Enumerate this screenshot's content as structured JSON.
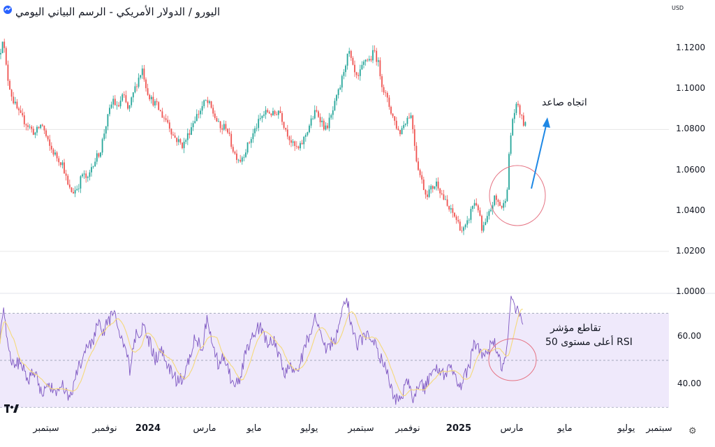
{
  "header": {
    "title": "اليورو / الدولار الأمريكي - الرسم البياني اليومي",
    "currency": "USD"
  },
  "annotations": {
    "uptrend": "اتجاه صاعد",
    "rsi_line1": "تقاطع مؤشر",
    "rsi_line2": "RSI أعلى مستوى 50"
  },
  "colors": {
    "up": "#26a69a",
    "down": "#ef5350",
    "rsi": "#7e57c2",
    "rsi_ma": "#f5d97a",
    "rsi_band": "#efe9fb",
    "arrow": "#1e88e5",
    "circle": "#e57383"
  },
  "icons": {
    "logo": "tradingview-logo",
    "settings": "settings-gear-icon"
  },
  "chart_data": [
    {
      "type": "candlestick",
      "series": [
        {
          "name": "EUR/USD"
        }
      ],
      "y_ticks": [
        "1.1200",
        "1.1000",
        "1.0800",
        "1.0600",
        "1.0400",
        "1.0200",
        "1.0000"
      ],
      "ylim": [
        1.0,
        1.13
      ],
      "x_ticks": [
        "سبتمبر",
        "نوفمبر",
        "2024",
        "مارس",
        "مايو",
        "يوليو",
        "سبتمبر",
        "نوفمبر",
        "2025",
        "مارس",
        "مايو",
        "يوليو",
        "سبتمبر"
      ],
      "approx_close_path": [
        [
          0,
          1.117
        ],
        [
          4,
          1.126
        ],
        [
          10,
          1.107
        ],
        [
          18,
          1.095
        ],
        [
          28,
          1.087
        ],
        [
          40,
          1.082
        ],
        [
          50,
          1.078
        ],
        [
          60,
          1.083
        ],
        [
          70,
          1.072
        ],
        [
          80,
          1.067
        ],
        [
          90,
          1.063
        ],
        [
          98,
          1.051
        ],
        [
          104,
          1.049
        ],
        [
          112,
          1.052
        ],
        [
          118,
          1.058
        ],
        [
          126,
          1.055
        ],
        [
          132,
          1.063
        ],
        [
          138,
          1.066
        ],
        [
          144,
          1.07
        ],
        [
          150,
          1.08
        ],
        [
          156,
          1.088
        ],
        [
          162,
          1.095
        ],
        [
          168,
          1.09
        ],
        [
          176,
          1.097
        ],
        [
          184,
          1.089
        ],
        [
          192,
          1.099
        ],
        [
          198,
          1.105
        ],
        [
          204,
          1.11
        ],
        [
          210,
          1.1
        ],
        [
          216,
          1.095
        ],
        [
          224,
          1.092
        ],
        [
          232,
          1.087
        ],
        [
          240,
          1.084
        ],
        [
          248,
          1.077
        ],
        [
          256,
          1.074
        ],
        [
          262,
          1.072
        ],
        [
          270,
          1.078
        ],
        [
          278,
          1.085
        ],
        [
          286,
          1.089
        ],
        [
          294,
          1.094
        ],
        [
          300,
          1.092
        ],
        [
          308,
          1.086
        ],
        [
          316,
          1.08
        ],
        [
          324,
          1.082
        ],
        [
          330,
          1.074
        ],
        [
          336,
          1.068
        ],
        [
          344,
          1.065
        ],
        [
          352,
          1.07
        ],
        [
          360,
          1.076
        ],
        [
          368,
          1.082
        ],
        [
          376,
          1.087
        ],
        [
          384,
          1.089
        ],
        [
          392,
          1.087
        ],
        [
          400,
          1.09
        ],
        [
          406,
          1.083
        ],
        [
          412,
          1.078
        ],
        [
          420,
          1.072
        ],
        [
          428,
          1.07
        ],
        [
          436,
          1.076
        ],
        [
          444,
          1.083
        ],
        [
          452,
          1.089
        ],
        [
          458,
          1.086
        ],
        [
          466,
          1.08
        ],
        [
          474,
          1.086
        ],
        [
          480,
          1.093
        ],
        [
          488,
          1.102
        ],
        [
          494,
          1.112
        ],
        [
          500,
          1.118
        ],
        [
          506,
          1.109
        ],
        [
          512,
          1.104
        ],
        [
          518,
          1.11
        ],
        [
          524,
          1.115
        ],
        [
          530,
          1.114
        ],
        [
          536,
          1.119
        ],
        [
          542,
          1.112
        ],
        [
          548,
          1.101
        ],
        [
          556,
          1.093
        ],
        [
          564,
          1.085
        ],
        [
          572,
          1.078
        ],
        [
          580,
          1.084
        ],
        [
          588,
          1.088
        ],
        [
          592,
          1.079
        ],
        [
          596,
          1.066
        ],
        [
          602,
          1.057
        ],
        [
          610,
          1.048
        ],
        [
          618,
          1.051
        ],
        [
          626,
          1.054
        ],
        [
          634,
          1.047
        ],
        [
          642,
          1.041
        ],
        [
          650,
          1.038
        ],
        [
          656,
          1.034
        ],
        [
          662,
          1.03
        ],
        [
          668,
          1.032
        ],
        [
          672,
          1.037
        ],
        [
          678,
          1.044
        ],
        [
          684,
          1.043
        ],
        [
          690,
          1.03
        ],
        [
          696,
          1.034
        ],
        [
          702,
          1.04
        ],
        [
          708,
          1.046
        ],
        [
          714,
          1.044
        ],
        [
          720,
          1.041
        ],
        [
          726,
          1.05
        ],
        [
          730,
          1.072
        ],
        [
          734,
          1.085
        ],
        [
          738,
          1.09
        ],
        [
          742,
          1.092
        ],
        [
          746,
          1.086
        ],
        [
          750,
          1.083
        ],
        [
          754,
          1.081
        ]
      ]
    },
    {
      "type": "line",
      "series": [
        {
          "name": "RSI"
        },
        {
          "name": "RSI MA"
        }
      ],
      "y_ticks": [
        "60.00",
        "40.00"
      ],
      "ylim": [
        28,
        77
      ],
      "bands": [
        30,
        50,
        70
      ],
      "approx_path": [
        [
          0,
          60
        ],
        [
          6,
          72
        ],
        [
          12,
          55
        ],
        [
          20,
          47
        ],
        [
          30,
          50
        ],
        [
          40,
          42
        ],
        [
          50,
          45
        ],
        [
          60,
          36
        ],
        [
          70,
          40
        ],
        [
          80,
          34
        ],
        [
          90,
          40
        ],
        [
          98,
          33
        ],
        [
          106,
          40
        ],
        [
          114,
          48
        ],
        [
          120,
          53
        ],
        [
          130,
          56
        ],
        [
          140,
          65
        ],
        [
          148,
          62
        ],
        [
          156,
          67
        ],
        [
          164,
          70
        ],
        [
          172,
          60
        ],
        [
          180,
          55
        ],
        [
          186,
          45
        ],
        [
          194,
          60
        ],
        [
          200,
          62
        ],
        [
          206,
          65
        ],
        [
          214,
          58
        ],
        [
          222,
          50
        ],
        [
          230,
          54
        ],
        [
          240,
          48
        ],
        [
          248,
          44
        ],
        [
          256,
          40
        ],
        [
          264,
          45
        ],
        [
          272,
          52
        ],
        [
          280,
          60
        ],
        [
          290,
          55
        ],
        [
          296,
          67
        ],
        [
          304,
          57
        ],
        [
          312,
          49
        ],
        [
          320,
          52
        ],
        [
          328,
          45
        ],
        [
          336,
          38
        ],
        [
          344,
          43
        ],
        [
          352,
          54
        ],
        [
          360,
          58
        ],
        [
          368,
          64
        ],
        [
          376,
          63
        ],
        [
          384,
          56
        ],
        [
          392,
          59
        ],
        [
          400,
          52
        ],
        [
          408,
          43
        ],
        [
          414,
          50
        ],
        [
          420,
          44
        ],
        [
          428,
          47
        ],
        [
          436,
          55
        ],
        [
          444,
          62
        ],
        [
          452,
          68
        ],
        [
          460,
          60
        ],
        [
          468,
          55
        ],
        [
          476,
          58
        ],
        [
          484,
          62
        ],
        [
          492,
          72
        ],
        [
          498,
          75
        ],
        [
          504,
          62
        ],
        [
          512,
          56
        ],
        [
          520,
          60
        ],
        [
          528,
          62
        ],
        [
          536,
          58
        ],
        [
          544,
          51
        ],
        [
          552,
          48
        ],
        [
          560,
          38
        ],
        [
          568,
          33
        ],
        [
          576,
          35
        ],
        [
          584,
          42
        ],
        [
          592,
          33
        ],
        [
          600,
          40
        ],
        [
          608,
          38
        ],
        [
          616,
          44
        ],
        [
          624,
          48
        ],
        [
          632,
          43
        ],
        [
          640,
          45
        ],
        [
          648,
          47
        ],
        [
          656,
          38
        ],
        [
          664,
          42
        ],
        [
          672,
          47
        ],
        [
          680,
          58
        ],
        [
          686,
          55
        ],
        [
          692,
          52
        ],
        [
          700,
          55
        ],
        [
          708,
          57
        ],
        [
          714,
          52
        ],
        [
          720,
          47
        ],
        [
          726,
          56
        ],
        [
          730,
          73
        ],
        [
          734,
          76
        ],
        [
          738,
          72
        ],
        [
          742,
          73
        ],
        [
          746,
          66
        ],
        [
          750,
          62
        ]
      ]
    }
  ]
}
